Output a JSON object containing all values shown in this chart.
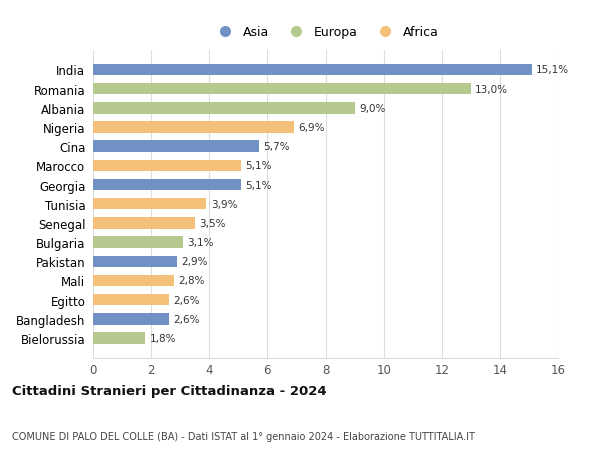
{
  "countries": [
    "India",
    "Romania",
    "Albania",
    "Nigeria",
    "Cina",
    "Marocco",
    "Georgia",
    "Tunisia",
    "Senegal",
    "Bulgaria",
    "Pakistan",
    "Mali",
    "Egitto",
    "Bangladesh",
    "Bielorussia"
  ],
  "values": [
    15.1,
    13.0,
    9.0,
    6.9,
    5.7,
    5.1,
    5.1,
    3.9,
    3.5,
    3.1,
    2.9,
    2.8,
    2.6,
    2.6,
    1.8
  ],
  "continents": [
    "Asia",
    "Europa",
    "Europa",
    "Africa",
    "Asia",
    "Africa",
    "Asia",
    "Africa",
    "Africa",
    "Europa",
    "Asia",
    "Africa",
    "Africa",
    "Asia",
    "Europa"
  ],
  "colors": {
    "Asia": "#7191c4",
    "Europa": "#b5c98e",
    "Africa": "#f5c07a"
  },
  "title_main": "Cittadini Stranieri per Cittadinanza - 2024",
  "title_sub": "COMUNE DI PALO DEL COLLE (BA) - Dati ISTAT al 1° gennaio 2024 - Elaborazione TUTTITALIA.IT",
  "xlim": [
    0,
    16
  ],
  "xticks": [
    0,
    2,
    4,
    6,
    8,
    10,
    12,
    14,
    16
  ],
  "bg_color": "#ffffff",
  "grid_color": "#dddddd",
  "bar_height": 0.6,
  "figsize": [
    6.0,
    4.6
  ],
  "dpi": 100
}
